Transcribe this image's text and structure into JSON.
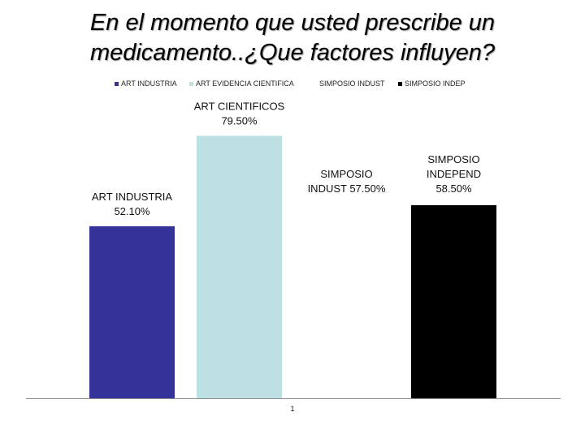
{
  "title_line1": "En el momento que usted prescribe un",
  "title_line2": "medicamento..¿Que factores influyen?",
  "chart_data": {
    "type": "bar",
    "title": "En el momento que usted prescribe un medicamento..¿Que factores influyen?",
    "categories": [
      "1"
    ],
    "ylim": [
      0,
      100
    ],
    "grid": false,
    "legend_position": "top",
    "series": [
      {
        "name": "ART INDUSTRIA",
        "values": [
          52.1
        ],
        "color": "#333399",
        "label_lines": [
          "ART INDUSTRIA",
          "52.10%"
        ]
      },
      {
        "name": "ART EVIDENCIA CIENTIFICA",
        "values": [
          79.5
        ],
        "color": "#bde0e3",
        "label_lines": [
          "ART CIENTIFICOS",
          "79.50%"
        ]
      },
      {
        "name": "SIMPOSIO INDUST",
        "values": [
          57.5
        ],
        "color": "#ffffff",
        "label_lines": [
          "SIMPOSIO",
          "INDUST 57.50%"
        ]
      },
      {
        "name": "SIMPOSIO INDEP",
        "values": [
          58.5
        ],
        "color": "#000000",
        "label_lines": [
          "SIMPOSIO",
          "INDEPEND",
          "58.50%"
        ]
      }
    ]
  }
}
